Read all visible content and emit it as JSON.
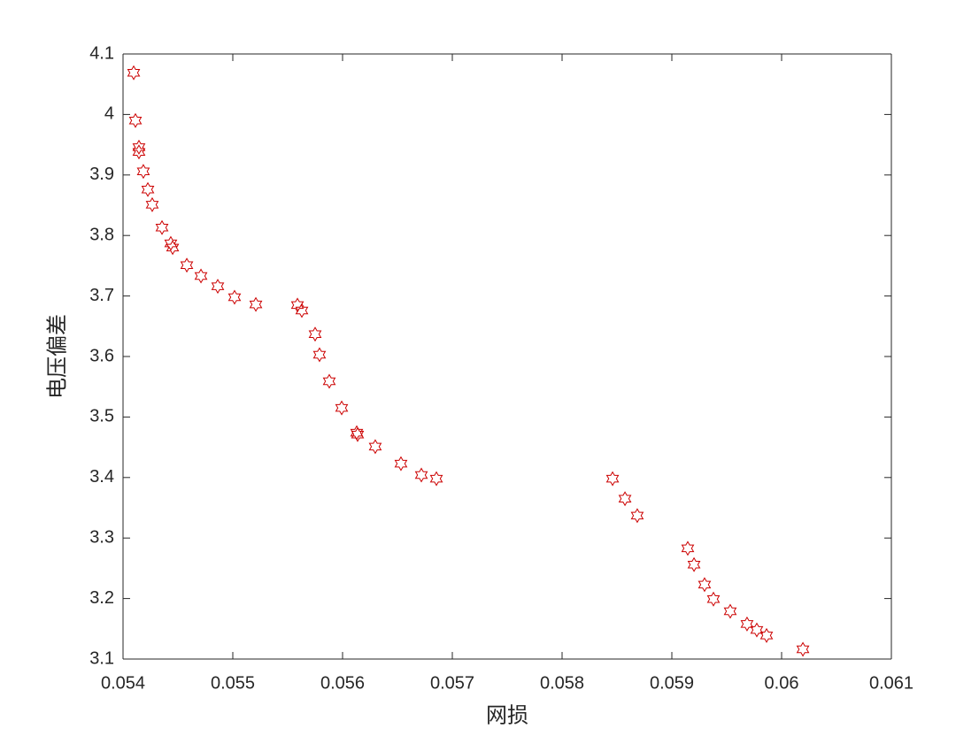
{
  "chart_data": {
    "type": "scatter",
    "xlabel": "网损",
    "ylabel": "电压偏差",
    "marker": "hexagram",
    "color": "#cc0000",
    "box": true,
    "grid": false,
    "x": [
      0.054097,
      0.054113,
      0.054145,
      0.054145,
      0.054185,
      0.054226,
      0.054266,
      0.054355,
      0.054435,
      0.054452,
      0.054581,
      0.05471,
      0.054863,
      0.055016,
      0.05521,
      0.055589,
      0.055629,
      0.05575,
      0.05579,
      0.055879,
      0.055992,
      0.056129,
      0.056137,
      0.056298,
      0.056532,
      0.056718,
      0.056855,
      0.05846,
      0.058573,
      0.058685,
      0.059145,
      0.059202,
      0.059298,
      0.059379,
      0.059532,
      0.059685,
      0.059774,
      0.059863,
      0.060194
    ],
    "values": [
      4.069,
      3.99,
      3.946,
      3.938,
      3.906,
      3.876,
      3.851,
      3.813,
      3.787,
      3.78,
      3.751,
      3.733,
      3.716,
      3.698,
      3.686,
      3.685,
      3.676,
      3.637,
      3.603,
      3.559,
      3.515,
      3.474,
      3.471,
      3.451,
      3.423,
      3.404,
      3.398,
      3.398,
      3.365,
      3.337,
      3.283,
      3.256,
      3.223,
      3.199,
      3.179,
      3.158,
      3.148,
      3.139,
      3.116
    ],
    "xlim": [
      0.054,
      0.061
    ],
    "xticks": [
      0.054,
      0.055,
      0.056,
      0.057,
      0.058,
      0.059,
      0.06,
      0.061
    ],
    "ylim": [
      3.1,
      4.1
    ],
    "yticks": [
      3.1,
      3.2,
      3.3,
      3.4,
      3.5,
      3.6,
      3.7,
      3.8,
      3.9,
      4,
      4.1
    ]
  }
}
